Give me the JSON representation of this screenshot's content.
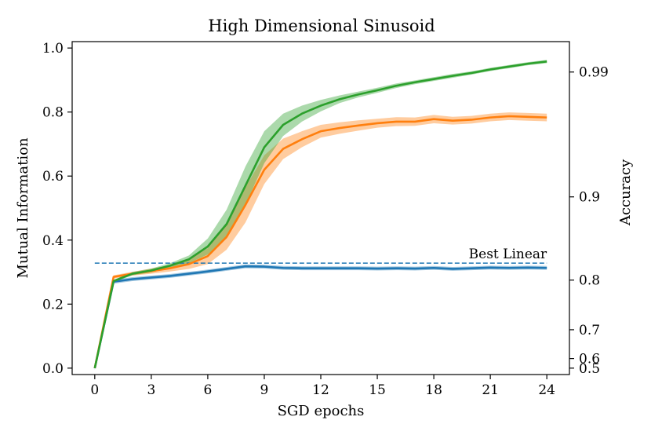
{
  "chart_data": {
    "type": "line",
    "title": "High Dimensional Sinusoid",
    "xlabel": "SGD epochs",
    "ylabel": "Mutual Information",
    "ylabel_right": "Accuracy",
    "xlim": [
      -1.2,
      25.2
    ],
    "ylim": [
      -0.02,
      1.02
    ],
    "xticks": [
      0,
      3,
      6,
      9,
      12,
      15,
      18,
      21,
      24
    ],
    "yticks": [
      0.0,
      0.2,
      0.4,
      0.6,
      0.8,
      1.0
    ],
    "ytick_labels": [
      "0.0",
      "0.2",
      "0.4",
      "0.6",
      "0.8",
      "1.0"
    ],
    "right_axis": {
      "ticks": [
        {
          "label": "0.99",
          "at_mi": 0.925
        },
        {
          "label": "0.9",
          "at_mi": 0.535
        },
        {
          "label": "0.8",
          "at_mi": 0.275
        },
        {
          "label": "0.7",
          "at_mi": 0.12
        },
        {
          "label": "0.6",
          "at_mi": 0.03
        },
        {
          "label": "0.5",
          "at_mi": 0.0
        }
      ]
    },
    "x": [
      0,
      1,
      2,
      3,
      4,
      5,
      6,
      7,
      8,
      9,
      10,
      11,
      12,
      13,
      14,
      15,
      16,
      17,
      18,
      19,
      20,
      21,
      22,
      23,
      24
    ],
    "series": [
      {
        "name": "blue",
        "color": "#1f77b4",
        "values": [
          0.0,
          0.27,
          0.278,
          0.283,
          0.288,
          0.295,
          0.302,
          0.31,
          0.318,
          0.317,
          0.313,
          0.312,
          0.312,
          0.312,
          0.312,
          0.311,
          0.312,
          0.311,
          0.313,
          0.31,
          0.312,
          0.314,
          0.313,
          0.314,
          0.313
        ],
        "band": 0.006
      },
      {
        "name": "orange",
        "color": "#ff7f0e",
        "values": [
          0.0,
          0.285,
          0.295,
          0.303,
          0.312,
          0.325,
          0.35,
          0.41,
          0.51,
          0.62,
          0.685,
          0.715,
          0.74,
          0.75,
          0.758,
          0.765,
          0.77,
          0.77,
          0.778,
          0.773,
          0.776,
          0.783,
          0.787,
          0.785,
          0.783
        ],
        "band": [
          0,
          0.005,
          0.006,
          0.008,
          0.01,
          0.015,
          0.025,
          0.04,
          0.055,
          0.045,
          0.032,
          0.025,
          0.02,
          0.018,
          0.016,
          0.014,
          0.014,
          0.013,
          0.013,
          0.012,
          0.012,
          0.012,
          0.012,
          0.012,
          0.012
        ]
      },
      {
        "name": "green",
        "color": "#2ca02c",
        "values": [
          0.0,
          0.272,
          0.295,
          0.305,
          0.32,
          0.34,
          0.38,
          0.45,
          0.57,
          0.69,
          0.76,
          0.795,
          0.82,
          0.84,
          0.855,
          0.868,
          0.882,
          0.893,
          0.903,
          0.913,
          0.922,
          0.933,
          0.942,
          0.951,
          0.958
        ],
        "band": [
          0,
          0.004,
          0.005,
          0.006,
          0.008,
          0.012,
          0.025,
          0.045,
          0.06,
          0.05,
          0.035,
          0.025,
          0.018,
          0.012,
          0.009,
          0.008,
          0.007,
          0.006,
          0.006,
          0.006,
          0.005,
          0.005,
          0.005,
          0.005,
          0.005
        ]
      }
    ],
    "reference_line": {
      "label": "Best Linear",
      "value": 0.328,
      "color": "#1f77b4",
      "x_from": 0,
      "x_to": 24
    }
  }
}
